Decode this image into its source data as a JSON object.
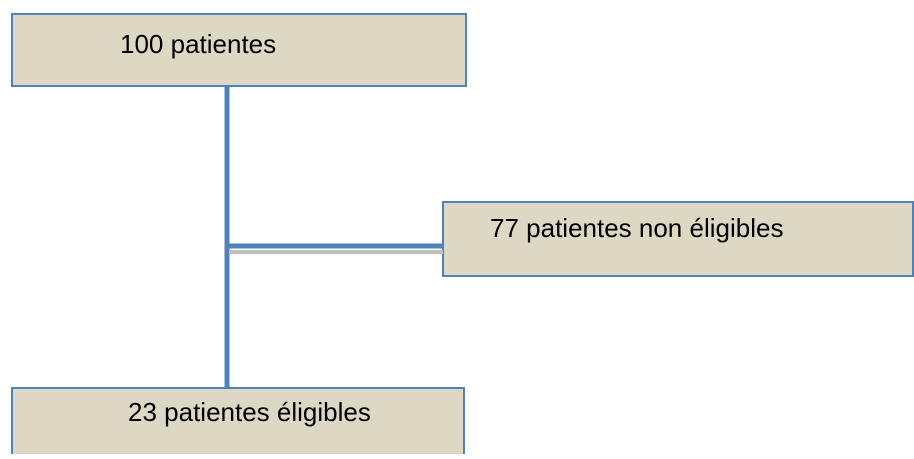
{
  "nodes": [
    {
      "label": "100 patientes"
    },
    {
      "label": "77 patientes non éligibles"
    },
    {
      "label": "23 patientes éligibles"
    }
  ]
}
